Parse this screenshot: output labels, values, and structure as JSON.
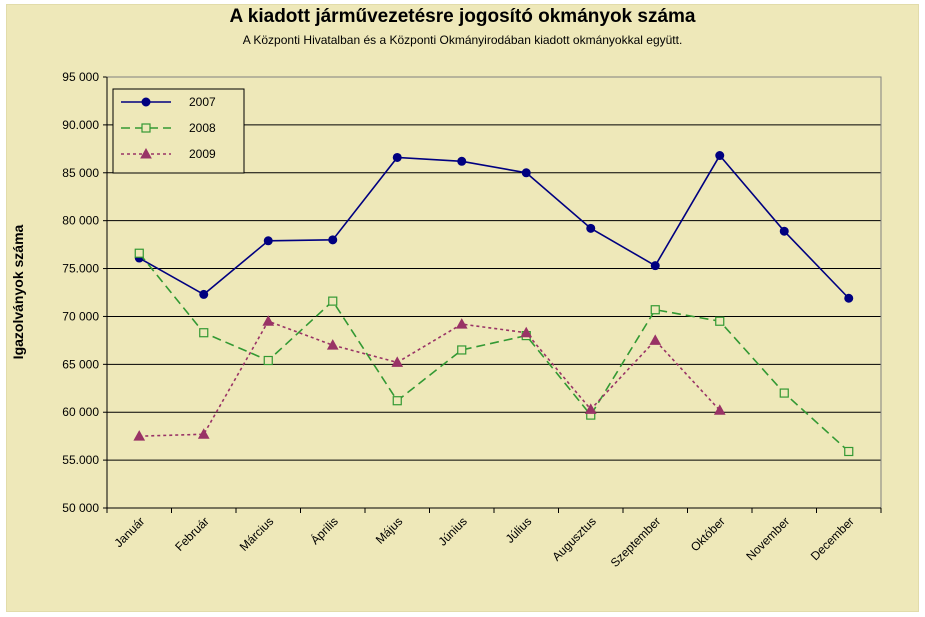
{
  "chart_data": {
    "type": "line",
    "title": "A  kiadott járművezetésre  jogosító okmányok száma",
    "subtitle": "A  Központi Hivatalban és a Központi Okmányirodában kiadott okmányokkal együtt.",
    "xlabel": "",
    "ylabel": "Igazolványok száma",
    "categories": [
      "Január",
      "Február",
      "Március",
      "Április",
      "Május",
      "Június",
      "Július",
      "Augusztus",
      "Szeptember",
      "Október",
      "November",
      "December"
    ],
    "ylim": [
      50000,
      95000
    ],
    "y_ticks": [
      50000,
      55000,
      60000,
      65000,
      70000,
      75000,
      80000,
      85000,
      90000,
      95000
    ],
    "y_tick_labels": [
      "50 000",
      "55.000",
      "60 000",
      "65 000",
      "70 000",
      "75.000",
      "80 000",
      "85 000",
      "90.000",
      "95 000"
    ],
    "grid": true,
    "legend_position": "top-left",
    "series": [
      {
        "name": "2007",
        "color": "#000080",
        "line_style": "solid",
        "marker": "circle",
        "values": [
          76100,
          72300,
          77900,
          78000,
          86600,
          86200,
          85000,
          79200,
          75300,
          86800,
          78900,
          71900
        ]
      },
      {
        "name": "2008",
        "color": "#339933",
        "line_style": "dashed",
        "marker": "square",
        "values": [
          76600,
          68300,
          65400,
          71600,
          61200,
          66500,
          68000,
          59700,
          70700,
          69500,
          62000,
          55900
        ]
      },
      {
        "name": "2009",
        "color": "#993366",
        "line_style": "dotted",
        "marker": "triangle",
        "values": [
          57500,
          57700,
          69500,
          67000,
          65200,
          69200,
          68300,
          60300,
          67500,
          60200,
          null,
          null
        ]
      }
    ]
  }
}
